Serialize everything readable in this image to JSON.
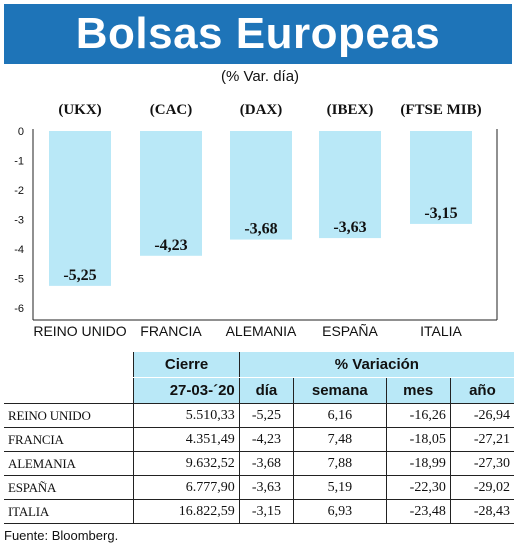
{
  "title": "Bolsas Europeas",
  "subtitle": "(% Var. día)",
  "chart_data": {
    "type": "bar",
    "categories": [
      "REINO UNIDO",
      "FRANCIA",
      "ALEMANIA",
      "ESPAÑA",
      "ITALIA"
    ],
    "indices": [
      "(UKX)",
      "(CAC)",
      "(DAX)",
      "(IBEX)",
      "(FTSE MIB)"
    ],
    "values": [
      -5.25,
      -4.23,
      -3.68,
      -3.63,
      -3.15
    ],
    "value_labels": [
      "-5,25",
      "-4,23",
      "-3,68",
      "-3,63",
      "-3,15"
    ],
    "yticks": [
      "0",
      "-1",
      "-2",
      "-3",
      "-4",
      "-5",
      "-6"
    ],
    "ylim": [
      -6,
      0
    ],
    "bar_color": "#b9e8f7",
    "grid": false
  },
  "table": {
    "header_cierre": "Cierre",
    "header_variacion": "% Variación",
    "columns": [
      "27-03-´20",
      "día",
      "semana",
      "mes",
      "año"
    ],
    "rows": [
      {
        "name": "REINO UNIDO",
        "cierre": "5.510,33",
        "dia": "-5,25",
        "semana": "6,16",
        "mes": "-16,26",
        "ano": "-26,94"
      },
      {
        "name": "FRANCIA",
        "cierre": "4.351,49",
        "dia": "-4,23",
        "semana": "7,48",
        "mes": "-18,05",
        "ano": "-27,21"
      },
      {
        "name": "ALEMANIA",
        "cierre": "9.632,52",
        "dia": "-3,68",
        "semana": "7,88",
        "mes": "-18,99",
        "ano": "-27,30"
      },
      {
        "name": "ESPAÑA",
        "cierre": "6.777,90",
        "dia": "-3,63",
        "semana": "5,19",
        "mes": "-22,30",
        "ano": "-29,02"
      },
      {
        "name": "ITALIA",
        "cierre": "16.822,59",
        "dia": "-3,15",
        "semana": "6,93",
        "mes": "-23,48",
        "ano": "-28,43"
      }
    ]
  },
  "source": "Fuente: Bloomberg."
}
